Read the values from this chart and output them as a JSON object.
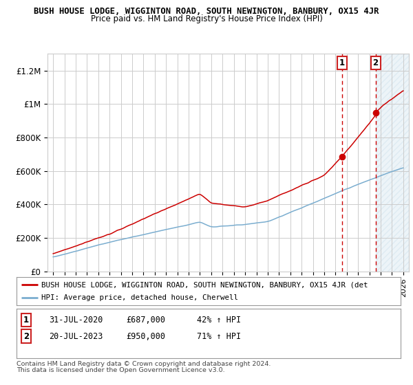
{
  "title": "BUSH HOUSE LODGE, WIGGINTON ROAD, SOUTH NEWINGTON, BANBURY, OX15 4JR",
  "subtitle": "Price paid vs. HM Land Registry's House Price Index (HPI)",
  "legend_line1": "BUSH HOUSE LODGE, WIGGINTON ROAD, SOUTH NEWINGTON, BANBURY, OX15 4JR (det",
  "legend_line2": "HPI: Average price, detached house, Cherwell",
  "annotation1_label": "1",
  "annotation1_date": "31-JUL-2020",
  "annotation1_price": "£687,000",
  "annotation1_hpi": "42% ↑ HPI",
  "annotation2_label": "2",
  "annotation2_date": "20-JUL-2023",
  "annotation2_price": "£950,000",
  "annotation2_hpi": "71% ↑ HPI",
  "footnote1": "Contains HM Land Registry data © Crown copyright and database right 2024.",
  "footnote2": "This data is licensed under the Open Government Licence v3.0.",
  "red_color": "#cc0000",
  "blue_color": "#7aadcf",
  "background_color": "#ffffff",
  "grid_color": "#cccccc",
  "ylim": [
    0,
    1300000
  ],
  "yticks": [
    0,
    200000,
    400000,
    600000,
    800000,
    1000000,
    1200000
  ],
  "ytick_labels": [
    "£0",
    "£200K",
    "£400K",
    "£600K",
    "£800K",
    "£1M",
    "£1.2M"
  ],
  "sale1_year": 2020.58,
  "sale1_value": 687000,
  "sale2_year": 2023.55,
  "sale2_value": 950000,
  "xstart": 1995,
  "xend": 2026
}
